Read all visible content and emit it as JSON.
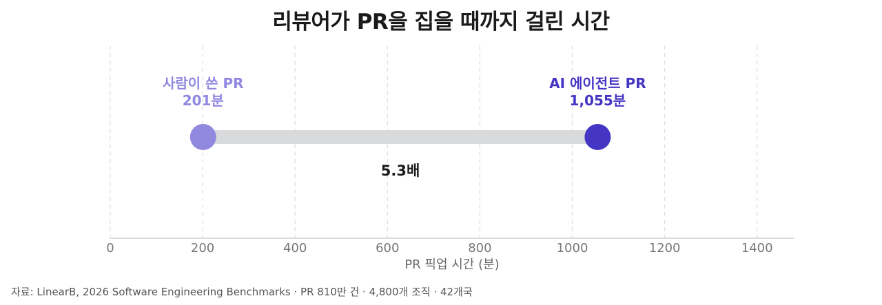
{
  "chart_data": {
    "type": "dumbbell",
    "title": "리뷰어가 PR을 집을 때까지 걸린 시간",
    "xlabel": "PR 픽업 시간 (분)",
    "ylabel": "",
    "xlim": [
      0,
      1480
    ],
    "xticks": [
      0,
      200,
      400,
      600,
      800,
      1000,
      1200,
      1400
    ],
    "x_tick_labels": [
      "0",
      "200",
      "400",
      "600",
      "800",
      "1000",
      "1200",
      "1400"
    ],
    "grid": true,
    "points": [
      {
        "name": "사람이 쓴 PR",
        "value": 201,
        "value_label": "201분",
        "color": "#9188df"
      },
      {
        "name": "AI 에이전트 PR",
        "value": 1055,
        "value_label": "1,055분",
        "color": "#4535c5"
      }
    ],
    "annotation": "5.3배",
    "bar_color": "#d9dadc"
  },
  "source": "자료: LinearB, 2026 Software Engineering Benchmarks · PR 810만 건 · 4,800개 조직 · 42개국"
}
